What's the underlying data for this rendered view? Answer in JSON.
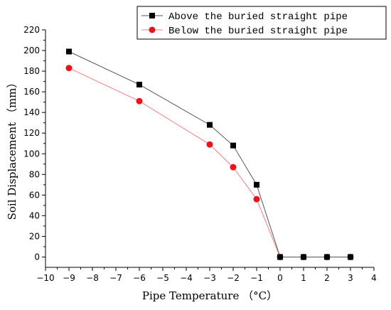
{
  "chart_data": {
    "type": "line",
    "xlabel": "Pipe Temperature （°C）",
    "ylabel": "Soil Displacement （mm）",
    "xlim": [
      -10,
      4
    ],
    "ylim": [
      -10,
      220
    ],
    "xticks": [
      -10,
      -9,
      -8,
      -7,
      -6,
      -5,
      -4,
      -3,
      -2,
      -1,
      0,
      1,
      2,
      3,
      4
    ],
    "yticks": [
      0,
      20,
      40,
      60,
      80,
      100,
      120,
      140,
      160,
      180,
      200,
      220
    ],
    "grid": false,
    "legend_position": "top-right",
    "series": [
      {
        "name": "Above the buried straight pipe",
        "color": "#000000",
        "line_color": "#555555",
        "marker": "square",
        "x": [
          -9,
          -6,
          -3,
          -2,
          -1,
          0,
          1,
          2,
          3
        ],
        "y": [
          199,
          167,
          128,
          108,
          70,
          0,
          0,
          0,
          0
        ]
      },
      {
        "name": "Below the buried straight pipe",
        "color": "#e8141c",
        "line_color": "#f08080",
        "marker": "circle",
        "x": [
          -9,
          -6,
          -3,
          -2,
          -1,
          0,
          1,
          2,
          3
        ],
        "y": [
          183,
          151,
          109,
          87,
          56,
          0,
          0,
          0,
          0
        ]
      }
    ]
  }
}
